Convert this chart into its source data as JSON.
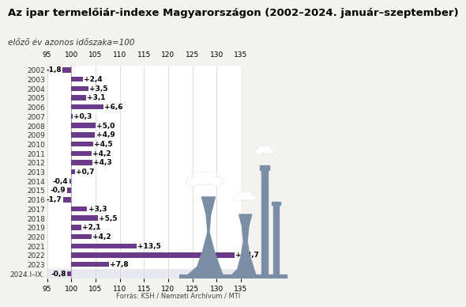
{
  "title": "Az ipar termelőiár-indexe Magyarországon (2002–2024. január–szeptember)",
  "subtitle": "előző év azonos időszaka=100",
  "years": [
    "2002",
    "2003",
    "2004",
    "2005",
    "2006",
    "2007",
    "2008",
    "2009",
    "2010",
    "2011",
    "2012",
    "2013",
    "2014",
    "2015",
    "2016",
    "2017",
    "2018",
    "2019",
    "2020",
    "2021",
    "2022",
    "2023",
    "2024.I–IX."
  ],
  "values": [
    -1.8,
    2.4,
    3.5,
    3.1,
    6.6,
    0.3,
    5.0,
    4.9,
    4.5,
    4.2,
    4.3,
    0.7,
    -0.4,
    -0.9,
    -1.7,
    3.3,
    5.5,
    2.1,
    4.2,
    13.5,
    33.7,
    7.8,
    -0.8
  ],
  "labels": [
    "-1,8",
    "+2,4",
    "+3,5",
    "+3,1",
    "+6,6",
    "+0,3",
    "+5,0",
    "+4,9",
    "+4,5",
    "+4,2",
    "+4,3",
    "+0,7",
    "-0,4",
    "-0,9",
    "-1,7",
    "+3,3",
    "+5,5",
    "+2,1",
    "+4,2",
    "+13,5",
    "+33,7",
    "+7,8",
    "-0,8"
  ],
  "bar_color": "#6B3A8A",
  "base": 100,
  "xlim": [
    95,
    135
  ],
  "xticks": [
    95,
    100,
    105,
    110,
    115,
    120,
    125,
    130,
    135
  ],
  "bg_color": "#f2f2ee",
  "plot_bg": "#ffffff",
  "grid_color": "#d0d0d0",
  "title_fontsize": 9.5,
  "subtitle_fontsize": 7.5,
  "label_fontsize": 6.5,
  "year_fontsize": 6.5,
  "tick_fontsize": 6.5,
  "footer": "Forrás: KSH / Nemzeti Archívum / MTI",
  "footer_fontsize": 6,
  "gray": "#7a8fa6",
  "smoke_gray": "#9db0c0",
  "last_row_bg": "#e8e8f0"
}
